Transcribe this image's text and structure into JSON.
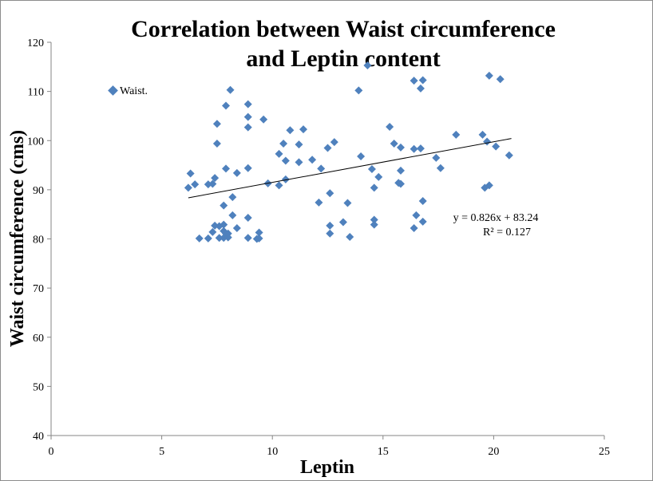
{
  "chart_data": {
    "type": "scatter",
    "title_lines": [
      "Correlation between Waist circumference",
      "and Leptin content"
    ],
    "xlabel": "Leptin",
    "ylabel": "Waist circumference (cms)",
    "xlim": [
      0,
      25
    ],
    "ylim": [
      40,
      120
    ],
    "x_ticks": [
      "0",
      "5",
      "10",
      "15",
      "20",
      "25"
    ],
    "y_ticks": [
      "40",
      "50",
      "60",
      "70",
      "80",
      "90",
      "100",
      "110",
      "120"
    ],
    "grid": false,
    "legend_position": "top-left",
    "marker_color": "#4f81bd",
    "trendline": {
      "slope": 0.826,
      "intercept": 83.24,
      "x_start": 6.2,
      "x_end": 20.8
    },
    "equation": "y = 0.826x + 83.24",
    "r_squared": "R² = 0.127",
    "series": [
      {
        "name": "Waist.",
        "points": [
          [
            6.3,
            93.3
          ],
          [
            6.2,
            90.4
          ],
          [
            6.5,
            91.1
          ],
          [
            6.7,
            80.1
          ],
          [
            7.1,
            80.1
          ],
          [
            7.3,
            81.4
          ],
          [
            7.1,
            91.1
          ],
          [
            7.3,
            91.2
          ],
          [
            7.4,
            92.4
          ],
          [
            7.4,
            82.7
          ],
          [
            7.6,
            82.6
          ],
          [
            7.6,
            80.2
          ],
          [
            7.8,
            80.2
          ],
          [
            7.8,
            81.6
          ],
          [
            7.8,
            82.9
          ],
          [
            7.9,
            81.1
          ],
          [
            7.5,
            103.4
          ],
          [
            7.5,
            99.4
          ],
          [
            7.9,
            107.1
          ],
          [
            7.9,
            94.3
          ],
          [
            7.8,
            86.8
          ],
          [
            8.0,
            80.3
          ],
          [
            8.0,
            81.1
          ],
          [
            8.2,
            84.8
          ],
          [
            8.2,
            88.5
          ],
          [
            8.1,
            110.3
          ],
          [
            8.4,
            82.2
          ],
          [
            8.4,
            93.4
          ],
          [
            8.9,
            107.4
          ],
          [
            8.9,
            104.8
          ],
          [
            8.9,
            102.7
          ],
          [
            8.9,
            94.4
          ],
          [
            8.9,
            84.3
          ],
          [
            8.9,
            80.2
          ],
          [
            9.3,
            80.0
          ],
          [
            9.4,
            81.3
          ],
          [
            9.4,
            80.1
          ],
          [
            9.6,
            104.3
          ],
          [
            9.8,
            91.3
          ],
          [
            10.3,
            90.9
          ],
          [
            10.3,
            97.3
          ],
          [
            10.5,
            99.4
          ],
          [
            10.6,
            95.9
          ],
          [
            10.6,
            92.1
          ],
          [
            10.8,
            102.1
          ],
          [
            11.2,
            99.2
          ],
          [
            11.2,
            95.6
          ],
          [
            11.4,
            102.3
          ],
          [
            11.8,
            96.1
          ],
          [
            12.1,
            87.4
          ],
          [
            12.2,
            94.3
          ],
          [
            12.5,
            98.5
          ],
          [
            12.6,
            89.3
          ],
          [
            12.6,
            82.7
          ],
          [
            12.6,
            81.1
          ],
          [
            12.8,
            99.7
          ],
          [
            13.2,
            83.4
          ],
          [
            13.4,
            87.3
          ],
          [
            13.5,
            80.4
          ],
          [
            13.9,
            110.2
          ],
          [
            14.0,
            96.8
          ],
          [
            14.3,
            115.3
          ],
          [
            14.5,
            94.2
          ],
          [
            14.6,
            90.4
          ],
          [
            14.6,
            83.9
          ],
          [
            14.6,
            82.9
          ],
          [
            14.8,
            92.6
          ],
          [
            15.3,
            102.8
          ],
          [
            15.5,
            99.4
          ],
          [
            15.7,
            91.4
          ],
          [
            15.8,
            98.6
          ],
          [
            15.8,
            93.9
          ],
          [
            15.8,
            91.2
          ],
          [
            16.4,
            112.2
          ],
          [
            16.4,
            98.3
          ],
          [
            16.4,
            82.2
          ],
          [
            16.5,
            84.8
          ],
          [
            16.7,
            110.6
          ],
          [
            16.8,
            112.3
          ],
          [
            16.7,
            98.4
          ],
          [
            16.8,
            87.7
          ],
          [
            16.8,
            83.5
          ],
          [
            17.4,
            96.5
          ],
          [
            17.6,
            94.4
          ],
          [
            18.3,
            101.2
          ],
          [
            19.5,
            101.2
          ],
          [
            19.6,
            90.4
          ],
          [
            19.7,
            99.8
          ],
          [
            19.8,
            90.9
          ],
          [
            19.8,
            113.2
          ],
          [
            20.1,
            98.8
          ],
          [
            20.3,
            112.5
          ],
          [
            20.7,
            97.0
          ]
        ]
      }
    ]
  }
}
